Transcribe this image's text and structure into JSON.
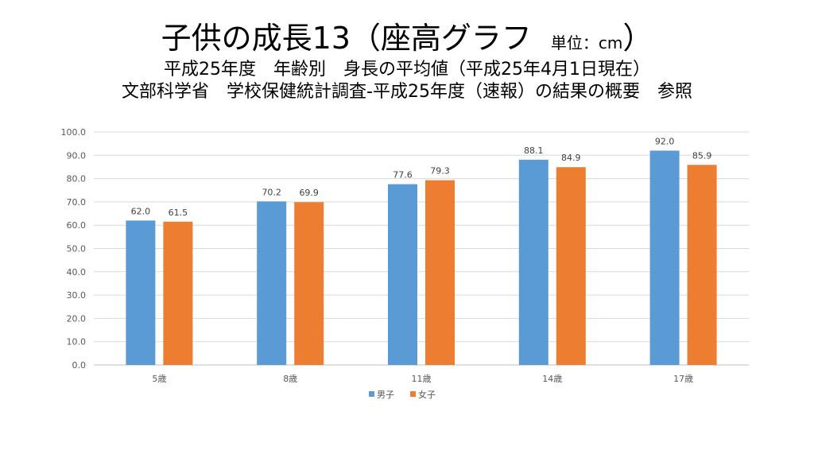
{
  "header": {
    "title_main": "子供の成長13（座高グラフ",
    "title_unit": "単位：cm",
    "title_close": "）",
    "subtitle": "平成25年度　年齢別　身長の平均値（平成25年4月1日現在）",
    "source": "文部科学省　学校保健統計調査-平成25年度（速報）の結果の概要　参照"
  },
  "chart_data": {
    "type": "bar",
    "categories": [
      "5歳",
      "8歳",
      "11歳",
      "14歳",
      "17歳"
    ],
    "series": [
      {
        "name": "男子",
        "color": "#5B9BD5",
        "values": [
          62.0,
          70.2,
          77.6,
          88.1,
          92.0
        ],
        "labels": [
          "62.0",
          "70.2",
          "77.6",
          "88.1",
          "92.0"
        ]
      },
      {
        "name": "女子",
        "color": "#ED7D31",
        "values": [
          61.5,
          69.9,
          79.3,
          84.9,
          85.9
        ],
        "labels": [
          "61.5",
          "69.9",
          "79.3",
          "84.9",
          "85.9"
        ]
      }
    ],
    "ylim": [
      0,
      100
    ],
    "yticks": [
      "0.0",
      "10.0",
      "20.0",
      "30.0",
      "40.0",
      "50.0",
      "60.0",
      "70.0",
      "80.0",
      "90.0",
      "100.0"
    ],
    "grid": true,
    "legend": "bottom"
  }
}
